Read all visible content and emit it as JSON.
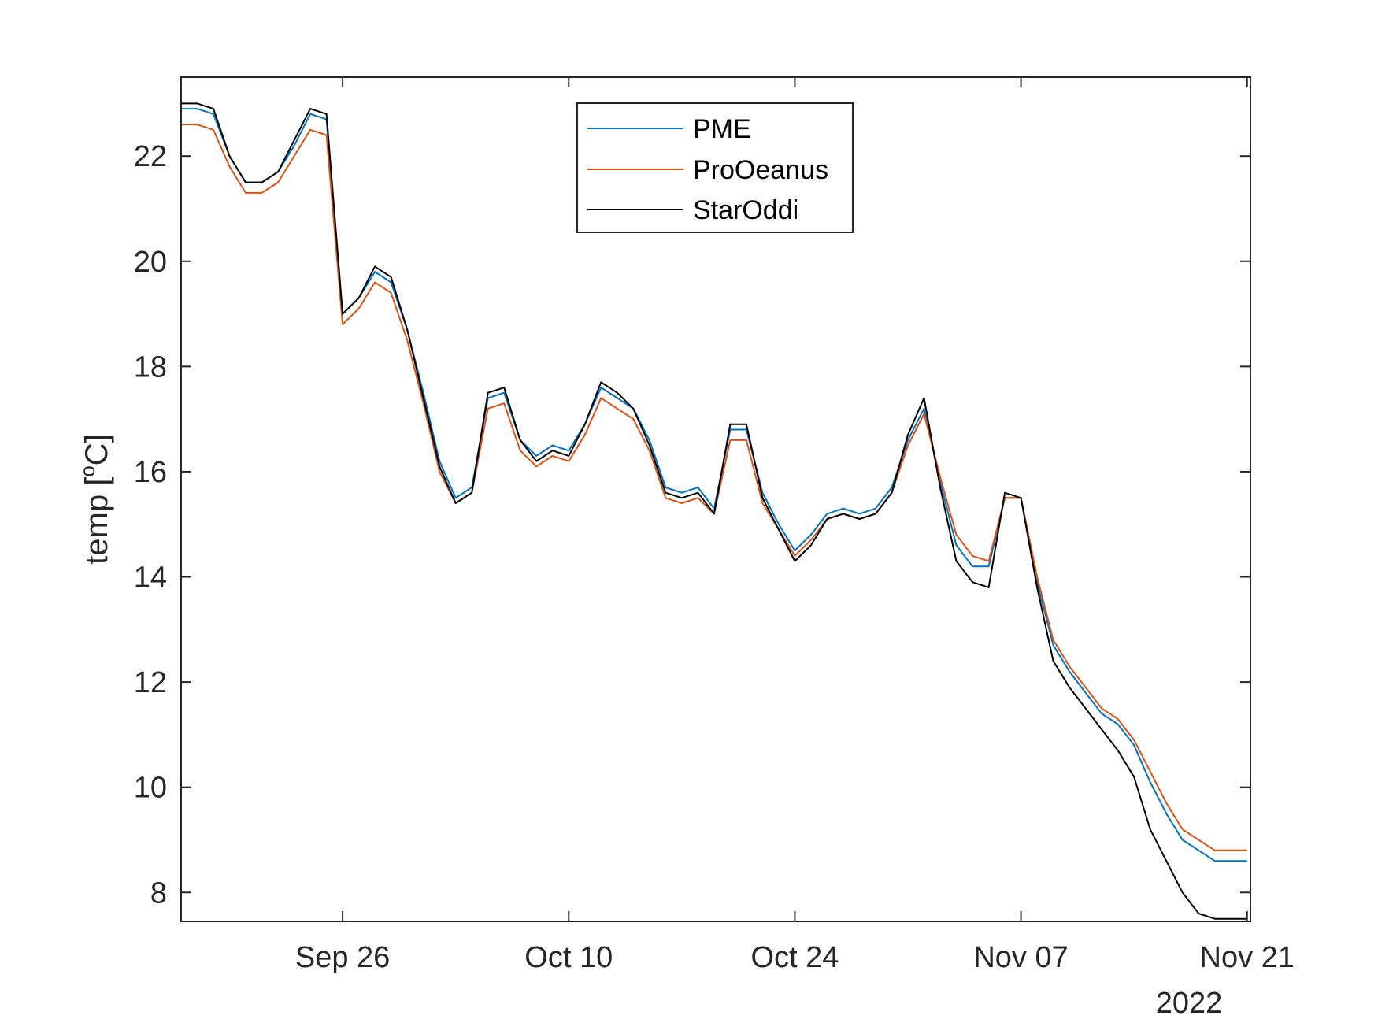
{
  "chart_data": {
    "type": "line",
    "title": "",
    "xlabel": "",
    "ylabel_main": "temp [",
    "ylabel_sup": "o",
    "ylabel_tail": "C]",
    "year_label": "2022",
    "ylim": [
      7.45,
      23.5
    ],
    "xlim": [
      "2022-09-16",
      "2022-11-21T05:00"
    ],
    "yticks": [
      8,
      10,
      12,
      14,
      16,
      18,
      20,
      22
    ],
    "xticks": [
      {
        "date": "2022-09-26",
        "label": "Sep 26"
      },
      {
        "date": "2022-10-10",
        "label": "Oct 10"
      },
      {
        "date": "2022-10-24",
        "label": "Oct 24"
      },
      {
        "date": "2022-11-07",
        "label": "Nov 07"
      },
      {
        "date": "2022-11-21",
        "label": "Nov 21"
      }
    ],
    "grid": false,
    "legend_position": "top-center",
    "x": [
      "2022-09-16",
      "2022-09-17",
      "2022-09-18",
      "2022-09-19",
      "2022-09-20",
      "2022-09-21",
      "2022-09-22",
      "2022-09-23",
      "2022-09-24",
      "2022-09-25",
      "2022-09-26",
      "2022-09-27",
      "2022-09-28",
      "2022-09-29",
      "2022-09-30",
      "2022-10-01",
      "2022-10-02",
      "2022-10-03",
      "2022-10-04",
      "2022-10-05",
      "2022-10-06",
      "2022-10-07",
      "2022-10-08",
      "2022-10-09",
      "2022-10-10",
      "2022-10-11",
      "2022-10-12",
      "2022-10-13",
      "2022-10-14",
      "2022-10-15",
      "2022-10-16",
      "2022-10-17",
      "2022-10-18",
      "2022-10-19",
      "2022-10-20",
      "2022-10-21",
      "2022-10-22",
      "2022-10-23",
      "2022-10-24",
      "2022-10-25",
      "2022-10-26",
      "2022-10-27",
      "2022-10-28",
      "2022-10-29",
      "2022-10-30",
      "2022-10-31",
      "2022-11-01",
      "2022-11-02",
      "2022-11-03",
      "2022-11-04",
      "2022-11-05",
      "2022-11-06",
      "2022-11-07",
      "2022-11-08",
      "2022-11-09",
      "2022-11-10",
      "2022-11-11",
      "2022-11-12",
      "2022-11-13",
      "2022-11-14",
      "2022-11-15",
      "2022-11-16",
      "2022-11-17",
      "2022-11-18",
      "2022-11-19",
      "2022-11-20",
      "2022-11-21"
    ],
    "series": [
      {
        "name": "PME",
        "color": "#0072BD",
        "values": [
          22.9,
          22.9,
          22.8,
          22.0,
          21.5,
          21.5,
          21.7,
          22.2,
          22.8,
          22.7,
          19.0,
          19.3,
          19.8,
          19.6,
          18.7,
          17.5,
          16.2,
          15.5,
          15.7,
          17.4,
          17.5,
          16.6,
          16.3,
          16.5,
          16.4,
          16.9,
          17.6,
          17.4,
          17.2,
          16.6,
          15.7,
          15.6,
          15.7,
          15.3,
          16.8,
          16.8,
          15.6,
          15.0,
          14.5,
          14.8,
          15.2,
          15.3,
          15.2,
          15.3,
          15.7,
          16.6,
          17.2,
          15.8,
          14.6,
          14.2,
          14.2,
          15.5,
          15.5,
          13.9,
          12.7,
          12.2,
          11.8,
          11.4,
          11.2,
          10.8,
          10.1,
          9.5,
          9.0,
          8.8,
          8.6,
          8.6,
          8.6
        ]
      },
      {
        "name": "ProOeanus",
        "color": "#D95319",
        "values": [
          22.6,
          22.6,
          22.5,
          21.8,
          21.3,
          21.3,
          21.5,
          22.0,
          22.5,
          22.4,
          18.8,
          19.1,
          19.6,
          19.4,
          18.5,
          17.3,
          16.0,
          15.4,
          15.6,
          17.2,
          17.3,
          16.4,
          16.1,
          16.3,
          16.2,
          16.7,
          17.4,
          17.2,
          17.0,
          16.4,
          15.5,
          15.4,
          15.5,
          15.2,
          16.6,
          16.6,
          15.4,
          14.9,
          14.4,
          14.7,
          15.1,
          15.2,
          15.1,
          15.2,
          15.6,
          16.5,
          17.1,
          15.9,
          14.8,
          14.4,
          14.3,
          15.5,
          15.5,
          14.0,
          12.8,
          12.3,
          11.9,
          11.5,
          11.3,
          10.9,
          10.3,
          9.7,
          9.2,
          9.0,
          8.8,
          8.8,
          8.8
        ]
      },
      {
        "name": "StarOddi",
        "color": "#000000",
        "values": [
          23.0,
          23.0,
          22.9,
          22.0,
          21.5,
          21.5,
          21.7,
          22.3,
          22.9,
          22.8,
          19.0,
          19.3,
          19.9,
          19.7,
          18.7,
          17.4,
          16.1,
          15.4,
          15.6,
          17.5,
          17.6,
          16.6,
          16.2,
          16.4,
          16.3,
          16.9,
          17.7,
          17.5,
          17.2,
          16.5,
          15.6,
          15.5,
          15.6,
          15.2,
          16.9,
          16.9,
          15.5,
          14.9,
          14.3,
          14.6,
          15.1,
          15.2,
          15.1,
          15.2,
          15.6,
          16.7,
          17.4,
          15.7,
          14.3,
          13.9,
          13.8,
          15.6,
          15.5,
          13.8,
          12.4,
          11.9,
          11.5,
          11.1,
          10.7,
          10.2,
          9.2,
          8.6,
          8.0,
          7.6,
          7.5,
          7.5,
          7.5
        ]
      }
    ]
  }
}
